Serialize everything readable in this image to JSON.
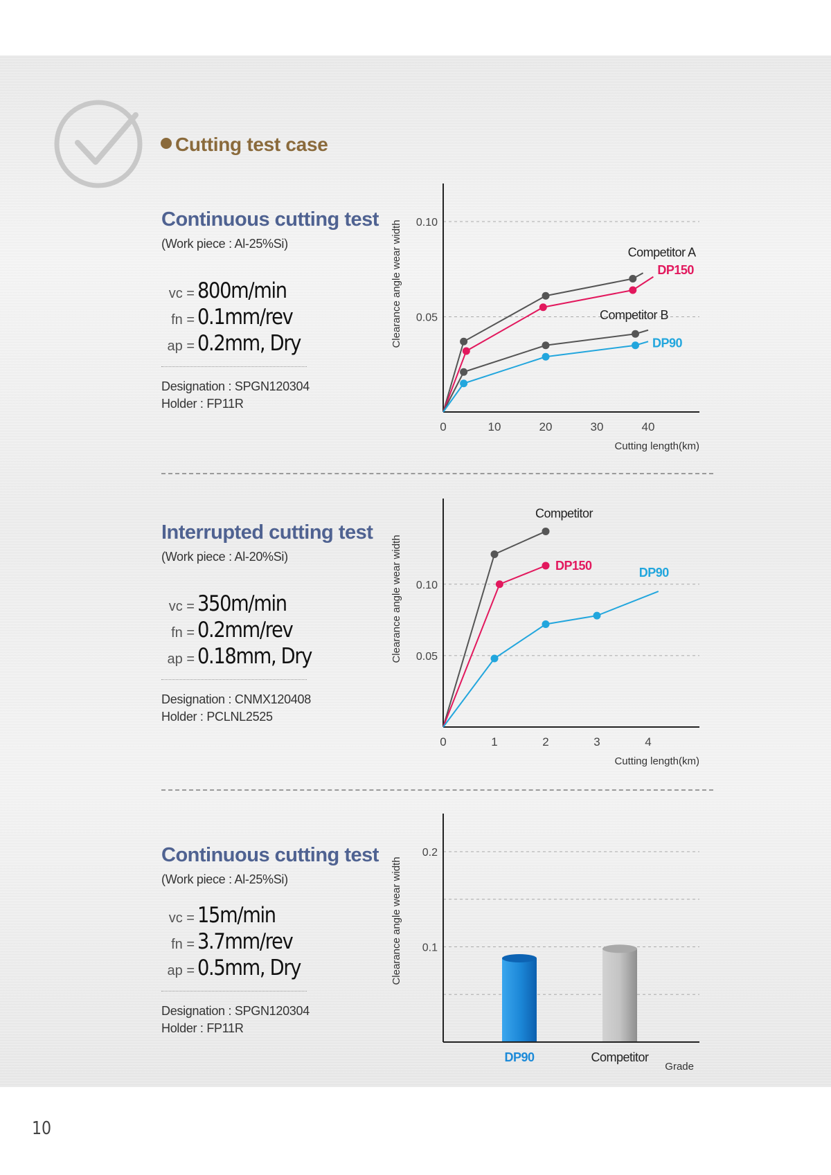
{
  "section": {
    "title": "Cutting test case"
  },
  "tests": [
    {
      "title": "Continuous cutting test",
      "workpiece": "(Work piece : Al-25%Si)",
      "params": [
        {
          "label": "vc =",
          "value": "800m/min"
        },
        {
          "label": "fn =",
          "value": "0.1mm/rev"
        },
        {
          "label": "ap =",
          "value": "0.2mm, Dry"
        }
      ],
      "designation": "Designation : SPGN120304",
      "holder": "Holder : FP11R"
    },
    {
      "title": "Interrupted cutting test",
      "workpiece": "(Work piece : Al-20%Si)",
      "params": [
        {
          "label": "vc =",
          "value": "350m/min"
        },
        {
          "label": "fn =",
          "value": "0.2mm/rev"
        },
        {
          "label": "ap =",
          "value": "0.18mm, Dry"
        }
      ],
      "designation": "Designation : CNMX120408",
      "holder": "Holder : PCLNL2525"
    },
    {
      "title": "Continuous cutting test",
      "workpiece": "(Work piece : Al-25%Si)",
      "params": [
        {
          "label": "vc =",
          "value": "15m/min"
        },
        {
          "label": "fn =",
          "value": "3.7mm/rev"
        },
        {
          "label": "ap =",
          "value": "0.5mm, Dry"
        }
      ],
      "designation": "Designation : SPGN120304",
      "holder": "Holder : FP11R"
    }
  ],
  "chart_data": [
    {
      "type": "line",
      "ylabel": "Clearance angle wear width",
      "xlabel": "Cutting length(km)",
      "xlim": [
        0,
        50
      ],
      "ylim": [
        0,
        0.12
      ],
      "xticks": [
        0,
        10,
        20,
        30,
        40
      ],
      "yticks": [
        0.05,
        0.1
      ],
      "ytick_labels": [
        "0.05",
        "0.10"
      ],
      "series": [
        {
          "name": "Competitor A",
          "color": "#555555",
          "x": [
            0,
            4,
            20,
            37,
            39
          ],
          "y": [
            0,
            0.037,
            0.061,
            0.07,
            0.073
          ]
        },
        {
          "name": "DP150",
          "color": "#e2185d",
          "x": [
            0,
            4.5,
            19.5,
            37,
            41
          ],
          "y": [
            0,
            0.032,
            0.055,
            0.064,
            0.071
          ]
        },
        {
          "name": "Competitor B",
          "color": "#555555",
          "x": [
            0,
            4,
            20,
            37.5,
            40
          ],
          "y": [
            0,
            0.021,
            0.035,
            0.041,
            0.043
          ]
        },
        {
          "name": "DP90",
          "color": "#22a6dd",
          "x": [
            0,
            4,
            20,
            37.5,
            40
          ],
          "y": [
            0,
            0.015,
            0.029,
            0.035,
            0.037
          ]
        }
      ]
    },
    {
      "type": "line",
      "ylabel": "Clearance angle wear width",
      "xlabel": "Cutting length(km)",
      "xlim": [
        0,
        5
      ],
      "ylim": [
        0,
        0.16
      ],
      "xticks": [
        0,
        1,
        2,
        3,
        4
      ],
      "yticks": [
        0.05,
        0.1
      ],
      "ytick_labels": [
        "0.05",
        "0.10"
      ],
      "series": [
        {
          "name": "Competitor",
          "color": "#555555",
          "x": [
            0,
            1,
            2
          ],
          "y": [
            0,
            0.121,
            0.137
          ]
        },
        {
          "name": "DP150",
          "color": "#e2185d",
          "x": [
            0,
            1.1,
            2
          ],
          "y": [
            0,
            0.1,
            0.113
          ]
        },
        {
          "name": "DP90",
          "color": "#22a6dd",
          "x": [
            0,
            1,
            2,
            3,
            4.2
          ],
          "y": [
            0,
            0.048,
            0.072,
            0.078,
            0.095
          ]
        }
      ]
    },
    {
      "type": "bar",
      "ylabel": "Clearance angle wear width",
      "xlabel": "Grade",
      "ylim": [
        0,
        0.24
      ],
      "yticks": [
        0.05,
        0.1,
        0.15,
        0.2
      ],
      "ytick_labels": [
        "",
        "0.1",
        "",
        "0.2"
      ],
      "categories": [
        "DP90",
        "Competitor"
      ],
      "values": [
        0.088,
        0.098
      ],
      "colors": [
        "#1c8ad8",
        "#b9b9b9"
      ]
    }
  ]
}
